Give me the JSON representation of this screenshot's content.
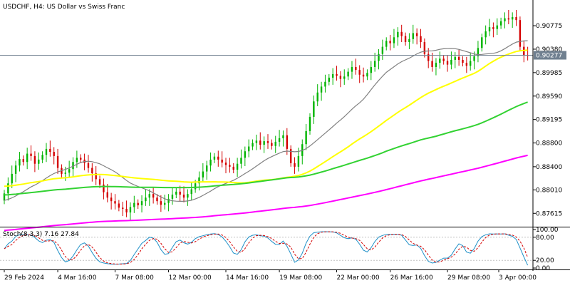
{
  "window": {
    "title": "USDCHF, H4:  US Dollar vs Swiss Franc"
  },
  "colors": {
    "background": "#ffffff",
    "axis": "#000000",
    "candle_up": "#00b400",
    "candle_down": "#d40000",
    "ma_fast": "#808080",
    "ma_mid": "#ffff00",
    "ma_slow": "#32d232",
    "ma_slowest": "#ff00ff",
    "price_line": "#708090",
    "stoch_main": "#1e90c8",
    "stoch_signal": "#d40000"
  },
  "chart_data": [
    {
      "type": "line",
      "title": "USDCHF, H4:  US Dollar vs Swiss Franc",
      "current_price": 0.90277,
      "current_price_label": "0.90277",
      "ylim": [
        0.8739,
        0.9116
      ],
      "yticks": [
        0.90775,
        0.9038,
        0.89985,
        0.8959,
        0.89195,
        0.888,
        0.884,
        0.8801,
        0.87615
      ],
      "ytick_labels": [
        "0.90775",
        "0.90380",
        "0.89985",
        "0.89590",
        "0.89195",
        "0.88800",
        "0.88400",
        "0.88010",
        "0.87615"
      ],
      "xtick_labels": [
        "29 Feb 2024",
        "4 Mar 16:00",
        "7 Mar 08:00",
        "12 Mar 00:00",
        "14 Mar 16:00",
        "19 Mar 08:00",
        "22 Mar 00:00",
        "26 Mar 16:00",
        "29 Mar 08:00",
        "3 Apr 00:00"
      ],
      "grid": false,
      "series": [
        {
          "kind": "candles",
          "close": [
            0.8795,
            0.8812,
            0.8828,
            0.8842,
            0.8853,
            0.8848,
            0.8862,
            0.8858,
            0.8845,
            0.8852,
            0.886,
            0.887,
            0.8865,
            0.8858,
            0.8838,
            0.8828,
            0.883,
            0.8836,
            0.8848,
            0.8855,
            0.8852,
            0.8846,
            0.8838,
            0.8829,
            0.8819,
            0.881,
            0.8797,
            0.8788,
            0.8782,
            0.8778,
            0.8771,
            0.8769,
            0.8763,
            0.8772,
            0.8779,
            0.8775,
            0.8782,
            0.8788,
            0.8794,
            0.8788,
            0.8782,
            0.8776,
            0.8779,
            0.8786,
            0.8793,
            0.8798,
            0.8793,
            0.8788,
            0.8794,
            0.8802,
            0.8812,
            0.8822,
            0.8832,
            0.8842,
            0.8852,
            0.8857,
            0.8852,
            0.8847,
            0.8843,
            0.884,
            0.8835,
            0.8845,
            0.8855,
            0.8866,
            0.8874,
            0.888,
            0.8884,
            0.8877,
            0.8883,
            0.888,
            0.8875,
            0.8882,
            0.8888,
            0.8893,
            0.887,
            0.8846,
            0.884,
            0.8858,
            0.8878,
            0.89,
            0.8924,
            0.895,
            0.8965,
            0.8975,
            0.8983,
            0.899,
            0.8996,
            0.8993,
            0.8988,
            0.8992,
            0.9,
            0.9008,
            0.9003,
            0.8995,
            0.8992,
            0.8998,
            0.9008,
            0.9018,
            0.903,
            0.9042,
            0.9052,
            0.9048,
            0.9058,
            0.9067,
            0.906,
            0.905,
            0.9055,
            0.9065,
            0.906,
            0.905,
            0.903,
            0.9018,
            0.9008,
            0.9015,
            0.9022,
            0.9018,
            0.9012,
            0.902,
            0.9025,
            0.902,
            0.9015,
            0.901,
            0.9018,
            0.9026,
            0.904,
            0.9058,
            0.9068,
            0.9075,
            0.9072,
            0.9078,
            0.9085,
            0.909,
            0.9088,
            0.9092,
            0.9087,
            0.9042,
            0.9028,
            0.9027
          ]
        },
        {
          "kind": "ma",
          "name": "",
          "color_key": "ma_fast",
          "window": 20
        },
        {
          "kind": "ma",
          "name": "",
          "color_key": "ma_mid",
          "window": 50
        },
        {
          "kind": "ma",
          "name": "",
          "color_key": "ma_slow",
          "window": 100
        },
        {
          "kind": "ma",
          "name": "",
          "color_key": "ma_slowest",
          "window": 200
        }
      ]
    },
    {
      "type": "line",
      "title": "Stoch(8,3,3) 7.16 27.84",
      "ylim": [
        0,
        100
      ],
      "yticks": [
        100,
        80,
        20,
        0
      ],
      "ytick_labels": [
        "100.00",
        "80.00",
        "20.00",
        "0.00"
      ],
      "levels": [
        80,
        20
      ],
      "main_last": 7.16,
      "signal_last": 27.84
    }
  ]
}
